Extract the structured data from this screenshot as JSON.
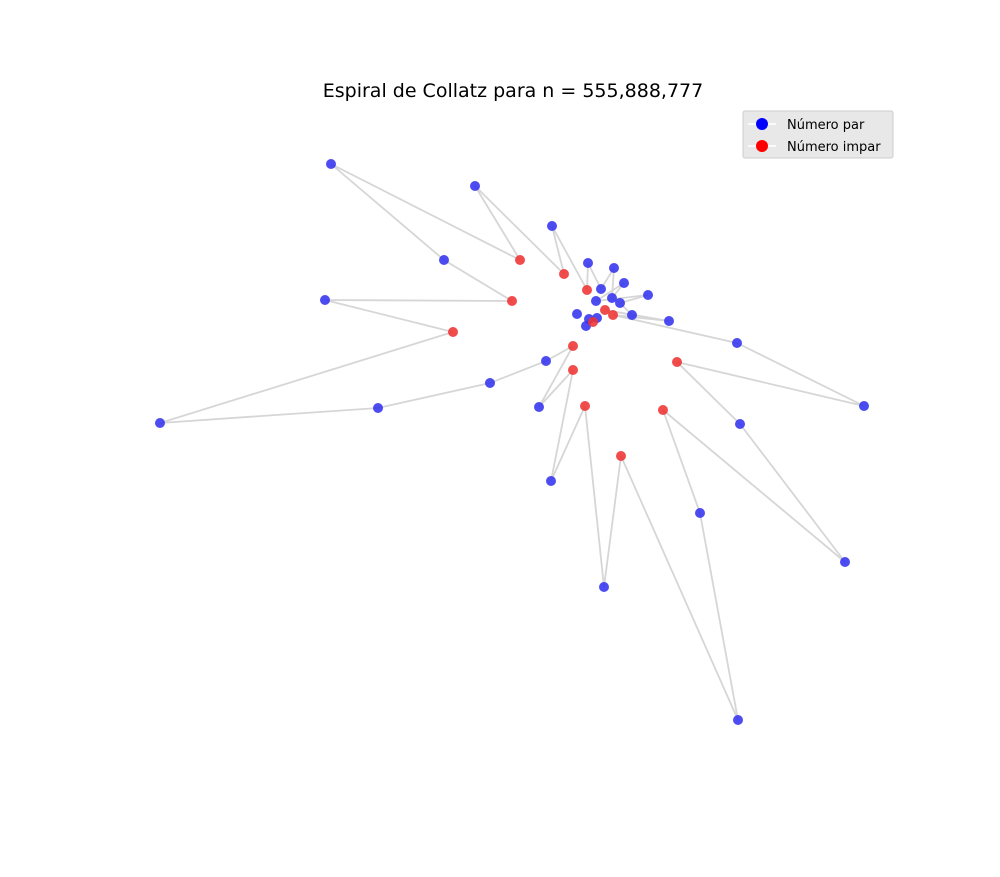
{
  "chart_data": {
    "type": "scatter",
    "title": "Espiral de Collatz para n = 555,888,777",
    "xlabel": "",
    "ylabel": "",
    "axes_visible": false,
    "grid": false,
    "connected_path": true,
    "line_color": "#d6d6d6",
    "legend": {
      "placement": "top-right",
      "entries": [
        {
          "label": "Número par",
          "color": "#0000ff"
        },
        {
          "label": "Número impar",
          "color": "#ff0000"
        }
      ]
    },
    "series": [
      {
        "name": "Número par",
        "color": "#3333ee",
        "points": [
          [
            331,
            164
          ],
          [
            475,
            186
          ],
          [
            552,
            226
          ],
          [
            588,
            263
          ],
          [
            614,
            268
          ],
          [
            624,
            283
          ],
          [
            601,
            289
          ],
          [
            648,
            295
          ],
          [
            612,
            298
          ],
          [
            596,
            301
          ],
          [
            620,
            303
          ],
          [
            632,
            315
          ],
          [
            577,
            314
          ],
          [
            669,
            321
          ],
          [
            586,
            326
          ],
          [
            737,
            343
          ],
          [
            546,
            361
          ],
          [
            490,
            383
          ],
          [
            444,
            260
          ],
          [
            325,
            300
          ],
          [
            160,
            423
          ],
          [
            378,
            408
          ],
          [
            539,
            407
          ],
          [
            551,
            481
          ],
          [
            604,
            587
          ],
          [
            740,
            424
          ],
          [
            864,
            406
          ],
          [
            845,
            562
          ],
          [
            700,
            513
          ],
          [
            738,
            720
          ],
          [
            597,
            318
          ],
          [
            589,
            319
          ]
        ]
      },
      {
        "name": "Número impar",
        "color": "#ee3333",
        "points": [
          [
            520,
            260
          ],
          [
            564,
            274
          ],
          [
            587,
            290
          ],
          [
            512,
            301
          ],
          [
            453,
            332
          ],
          [
            573,
            346
          ],
          [
            573,
            370
          ],
          [
            585,
            406
          ],
          [
            621,
            456
          ],
          [
            663,
            410
          ],
          [
            677,
            362
          ],
          [
            613,
            315
          ],
          [
            605,
            310
          ],
          [
            593,
            322
          ]
        ]
      }
    ],
    "path": [
      [
        331,
        164
      ],
      [
        520,
        260
      ],
      [
        475,
        186
      ],
      [
        564,
        274
      ],
      [
        552,
        226
      ],
      [
        587,
        290
      ],
      [
        588,
        263
      ],
      [
        601,
        289
      ],
      [
        614,
        268
      ],
      [
        612,
        298
      ],
      [
        624,
        283
      ],
      [
        596,
        301
      ],
      [
        648,
        295
      ],
      [
        620,
        303
      ],
      [
        632,
        315
      ],
      [
        605,
        310
      ],
      [
        669,
        321
      ],
      [
        613,
        315
      ],
      [
        737,
        343
      ],
      [
        864,
        406
      ],
      [
        677,
        362
      ],
      [
        740,
        424
      ],
      [
        845,
        562
      ],
      [
        663,
        410
      ],
      [
        700,
        513
      ],
      [
        738,
        720
      ],
      [
        621,
        456
      ],
      [
        604,
        587
      ],
      [
        585,
        406
      ],
      [
        551,
        481
      ],
      [
        573,
        370
      ],
      [
        539,
        407
      ],
      [
        573,
        346
      ],
      [
        546,
        361
      ],
      [
        490,
        383
      ],
      [
        378,
        408
      ],
      [
        160,
        423
      ],
      [
        453,
        332
      ],
      [
        325,
        300
      ],
      [
        512,
        301
      ],
      [
        444,
        260
      ],
      [
        331,
        164
      ]
    ]
  }
}
